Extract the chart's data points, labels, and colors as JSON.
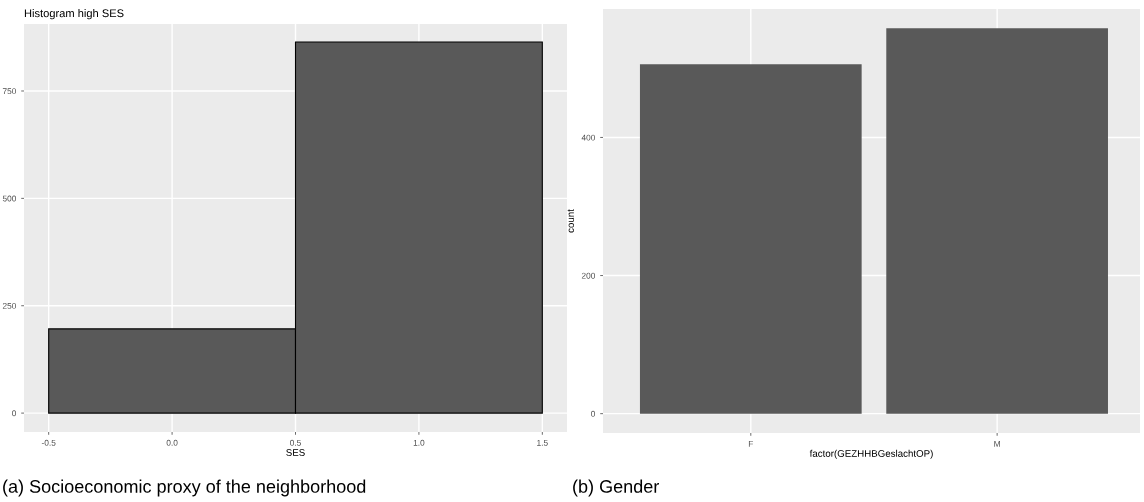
{
  "chart_data": [
    {
      "type": "histogram",
      "title": "Histogram high SES",
      "xlabel": "SES",
      "bins": [
        -0.5,
        0.5,
        1.5
      ],
      "values": [
        196,
        864
      ],
      "color": "#595959",
      "xlim": [
        -0.6,
        1.6
      ],
      "ylim": [
        -44,
        906
      ],
      "xticks": [
        -0.5,
        {
          "value": 0,
          "label": "0.0"
        },
        0.5,
        {
          "value": 1,
          "label": "1.0"
        },
        1.5
      ],
      "yticks": [
        0,
        250,
        500,
        750
      ],
      "grid": true,
      "annotations": [
        "(a) Socioeconomic proxy of the neighborhood"
      ]
    },
    {
      "type": "bar",
      "xlabel": "factor(GEZHHBGeslachtOP)",
      "ylabel": "count",
      "categories": [
        "F",
        "M"
      ],
      "values": [
        506,
        558
      ],
      "color": "#595959",
      "ylim": [
        -28,
        586
      ],
      "yticks": [
        0,
        200,
        400
      ],
      "grid": true,
      "annotations": [
        "(b) Gender"
      ]
    }
  ]
}
